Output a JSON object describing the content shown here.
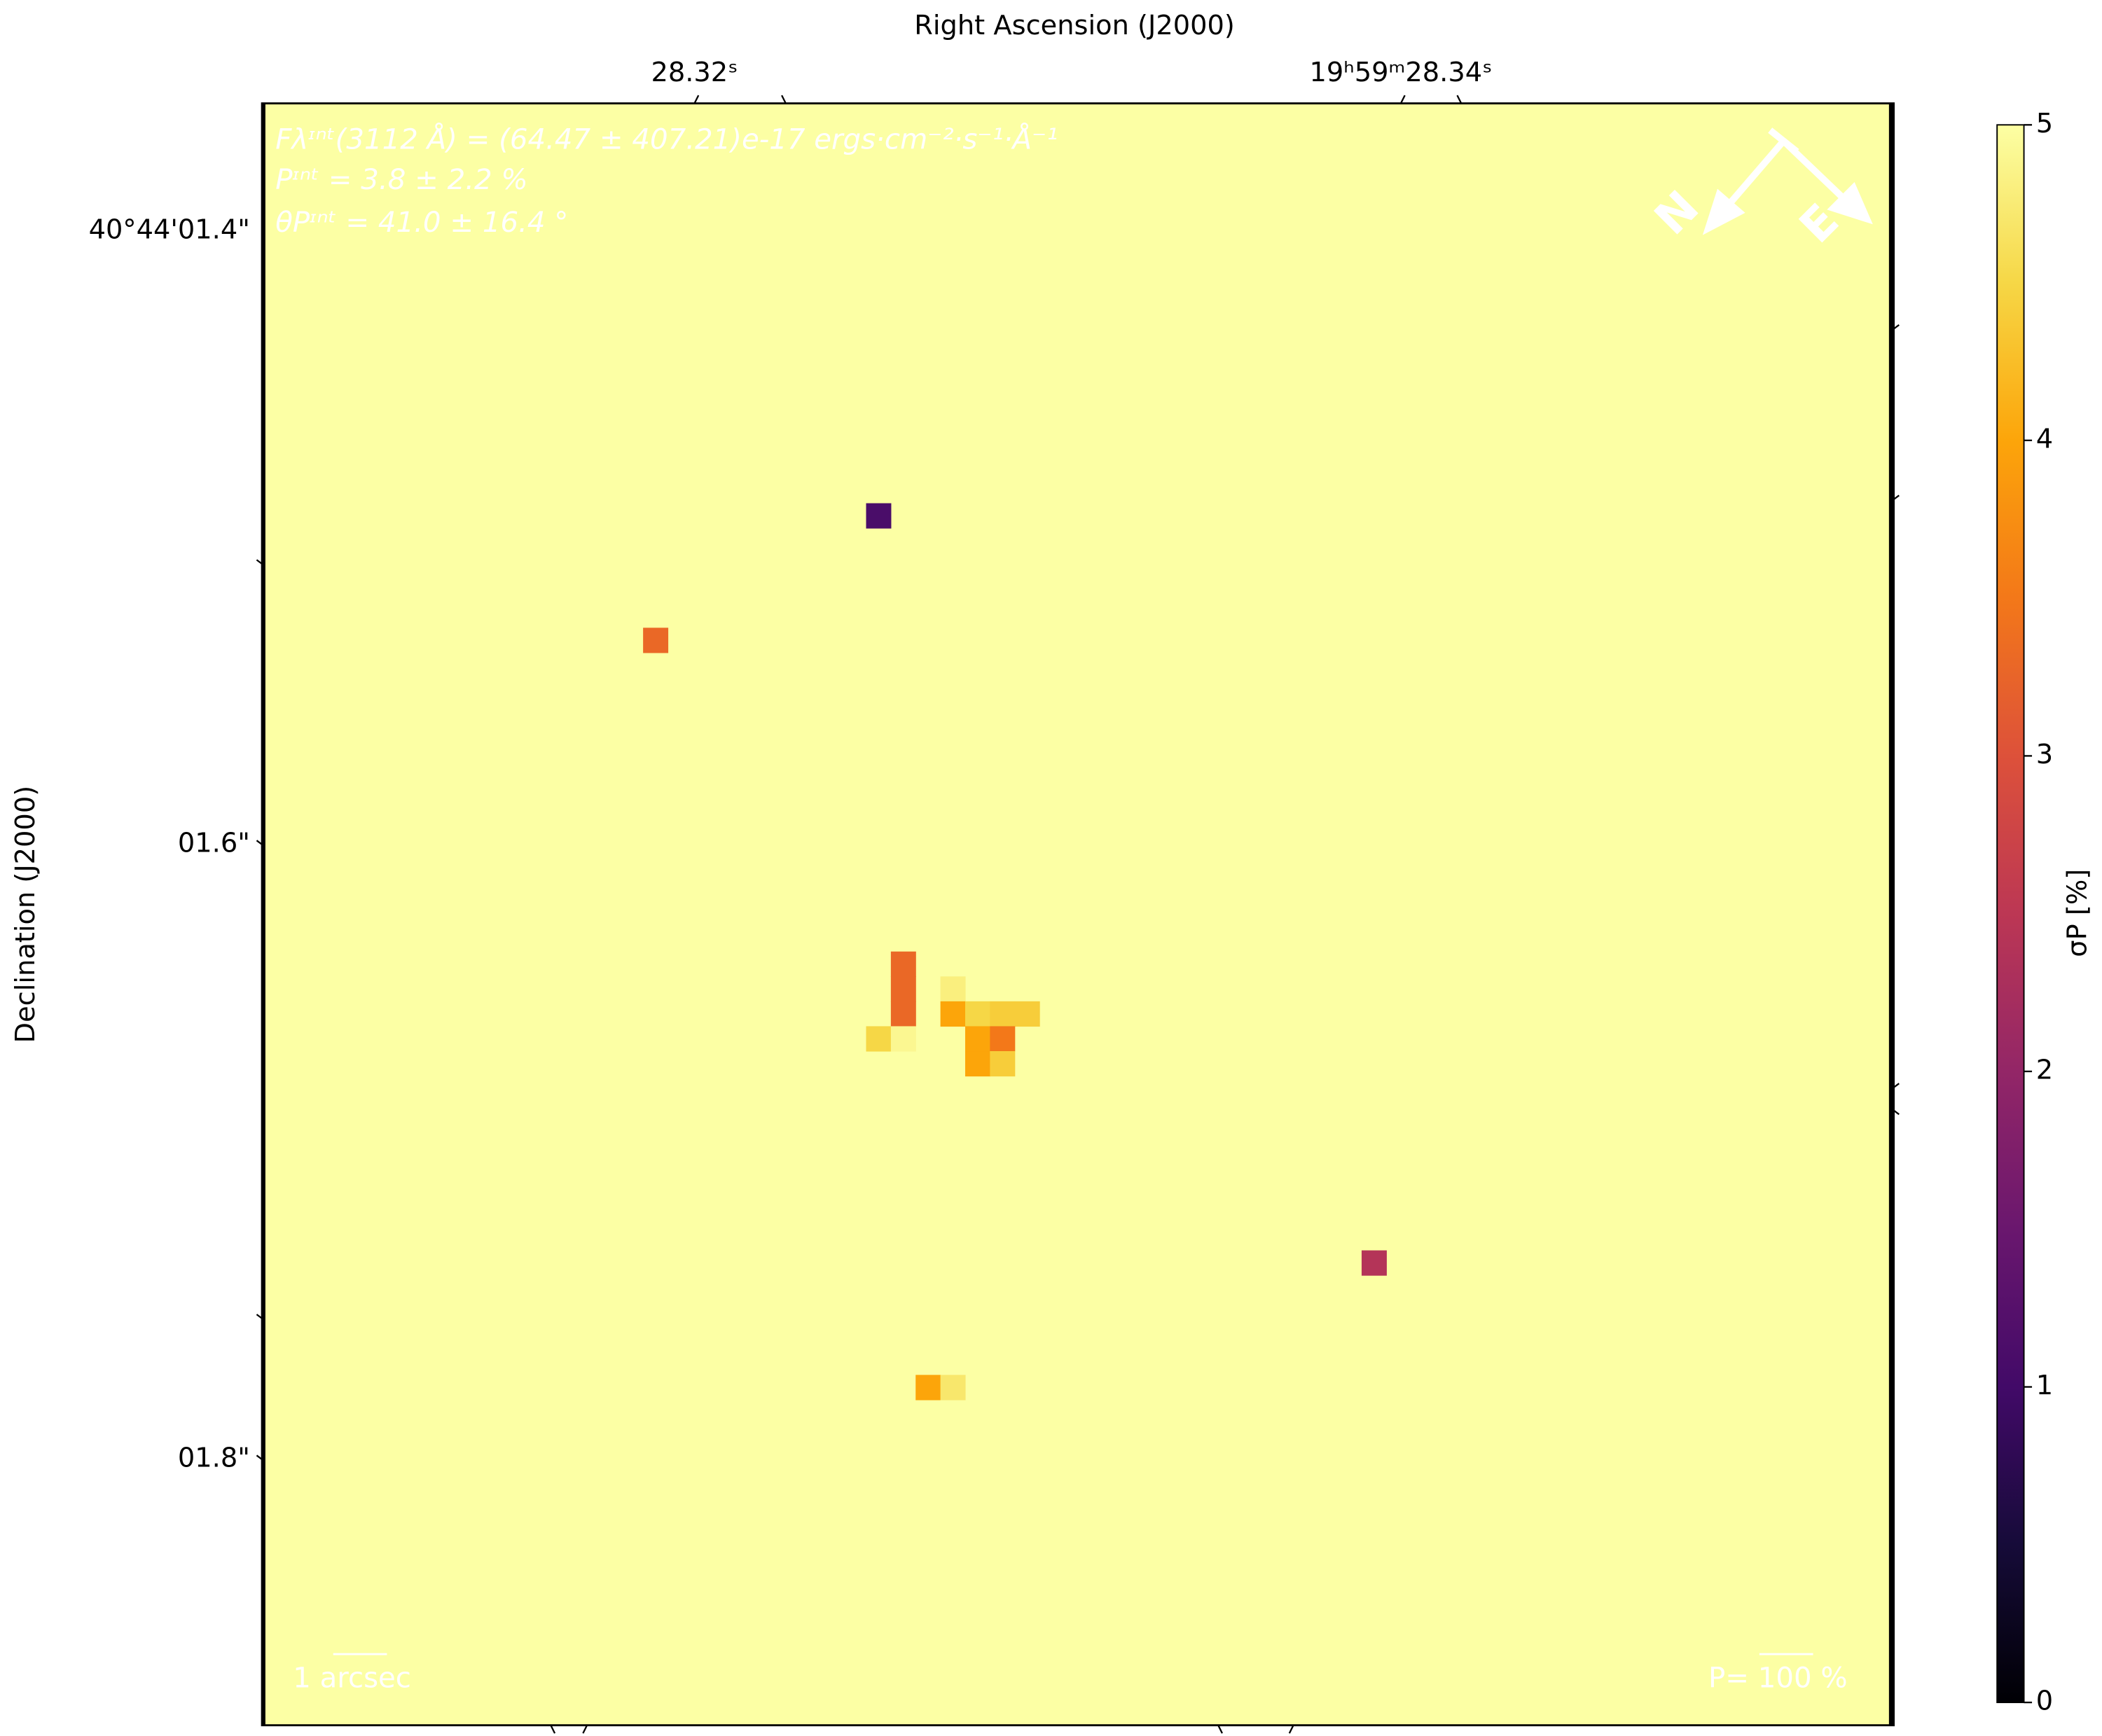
{
  "chart_data": {
    "type": "heatmap",
    "x_label": "Right Ascension (J2000)",
    "y_label": "Declination (J2000)",
    "x_tick_labels": [
      "28.32ˢ",
      "19ʰ59ᵐ28.34ˢ"
    ],
    "y_tick_labels": [
      "40°44'01.4\"",
      "01.6\"",
      "01.8\""
    ],
    "annotations": [
      "Fλᶦⁿᵗ(3112 Å) = (64.47 ± 407.21)e-17 ergs·cm⁻²·s⁻¹·Å⁻¹",
      "Pᶦⁿᵗ = 3.8 ± 2.2 %",
      "θPᶦⁿᵗ = 41.0 ± 16.4 °"
    ],
    "scale_bar": "1 arcsec",
    "vector_scale": "P= 100 %",
    "compass": [
      "N",
      "E"
    ],
    "colormap": "inferno",
    "background_value": 5,
    "cells": [
      {
        "col": 24,
        "row": 16,
        "value": 1.1
      },
      {
        "col": 15,
        "row": 21,
        "value": 3.3
      },
      {
        "col": 25,
        "row": 34,
        "value": 3.3
      },
      {
        "col": 25,
        "row": 35,
        "value": 3.3
      },
      {
        "col": 25,
        "row": 36,
        "value": 3.3
      },
      {
        "col": 27,
        "row": 35,
        "value": 4.8
      },
      {
        "col": 27,
        "row": 36,
        "value": 4.0
      },
      {
        "col": 28,
        "row": 36,
        "value": 4.5
      },
      {
        "col": 29,
        "row": 36,
        "value": 4.4
      },
      {
        "col": 30,
        "row": 36,
        "value": 4.4
      },
      {
        "col": 24,
        "row": 37,
        "value": 4.5
      },
      {
        "col": 25,
        "row": 37,
        "value": 4.9
      },
      {
        "col": 28,
        "row": 37,
        "value": 4.0
      },
      {
        "col": 29,
        "row": 37,
        "value": 3.5
      },
      {
        "col": 28,
        "row": 38,
        "value": 4.0
      },
      {
        "col": 29,
        "row": 38,
        "value": 4.4
      },
      {
        "col": 44,
        "row": 46,
        "value": 2.4
      },
      {
        "col": 26,
        "row": 51,
        "value": 4.0
      },
      {
        "col": 27,
        "row": 51,
        "value": 4.7
      }
    ],
    "colorbar_label": "σP [%]",
    "clim": [
      0,
      5
    ],
    "cticks": [
      0,
      1,
      2,
      3,
      4,
      5
    ]
  }
}
